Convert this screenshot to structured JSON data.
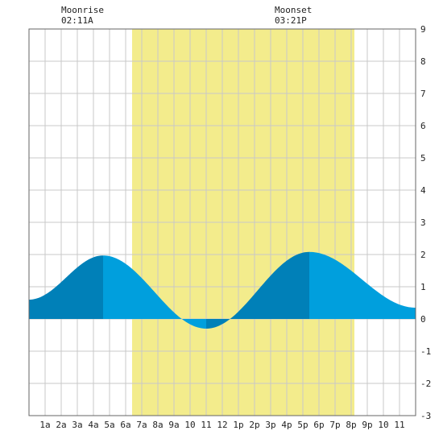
{
  "chart_data": {
    "type": "area",
    "title": "",
    "xlabel": "",
    "ylabel": "",
    "xlim": [
      0,
      24
    ],
    "ylim": [
      -3,
      9
    ],
    "y_ticks": [
      9,
      8,
      7,
      6,
      5,
      4,
      3,
      2,
      1,
      0,
      -1,
      -2,
      -3
    ],
    "x_tick_labels": [
      "1a",
      "2a",
      "3a",
      "4a",
      "5a",
      "6a",
      "7a",
      "8a",
      "9a",
      "10",
      "11",
      "12",
      "1p",
      "2p",
      "3p",
      "4p",
      "5p",
      "6p",
      "7p",
      "8p",
      "9p",
      "10",
      "11"
    ],
    "grid": true,
    "daylight": {
      "start": 6.4,
      "end": 20.2
    },
    "series": [
      {
        "x": [
          0,
          4.6,
          11.0,
          17.4,
          24
        ],
        "y": [
          0.6,
          1.97,
          -0.3,
          2.08,
          0.35
        ]
      }
    ],
    "extrema": [
      {
        "type": "high",
        "x": 4.6,
        "y": 1.97
      },
      {
        "type": "low",
        "x": 11.0,
        "y": -0.3
      },
      {
        "type": "high",
        "x": 17.4,
        "y": 2.08
      }
    ],
    "annotations": {
      "moonrise": {
        "label": "Moonrise",
        "time": "02:11A",
        "x": 2.18
      },
      "moonset": {
        "label": "Moonset",
        "time": "03:21P",
        "x": 15.35
      }
    },
    "colors": {
      "daylight": "#f3ec8c",
      "grid": "#c8c8c8",
      "tide_dark": "#0080b8",
      "tide_light": "#009fdd",
      "border": "#666666"
    }
  }
}
